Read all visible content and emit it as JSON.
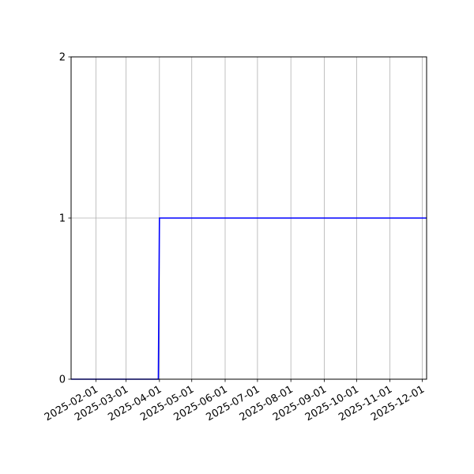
{
  "chart_data": {
    "type": "line",
    "title": "",
    "xlabel": "",
    "ylabel": "",
    "x_axis_type": "date",
    "xlim": [
      "2025-01-09",
      "2025-12-05"
    ],
    "ylim": [
      0,
      2
    ],
    "grid": true,
    "x_ticks": [
      "2025-02-01",
      "2025-03-01",
      "2025-04-01",
      "2025-05-01",
      "2025-06-01",
      "2025-07-01",
      "2025-08-01",
      "2025-09-01",
      "2025-10-01",
      "2025-11-01",
      "2025-12-01"
    ],
    "y_ticks": [
      0,
      1,
      2
    ],
    "series": [
      {
        "color": "#0000ff",
        "x": [
          "2025-01-09",
          "2025-03-31",
          "2025-04-01",
          "2025-12-05"
        ],
        "y": [
          0,
          0,
          1,
          1
        ]
      }
    ]
  }
}
